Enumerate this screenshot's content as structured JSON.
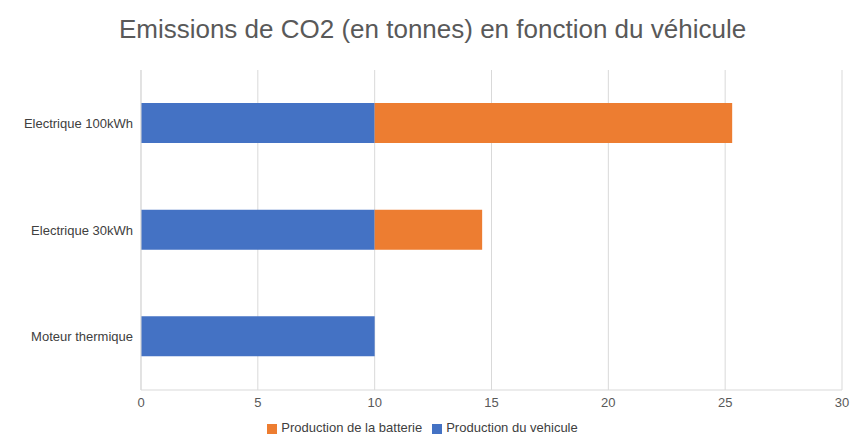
{
  "chart_data": {
    "type": "bar",
    "title": "Emissions de CO2 (en tonnes) en fonction du véhicule",
    "orientation": "horizontal",
    "stacked": true,
    "categories": [
      "Electrique 100kWh",
      "Electrique 30kWh",
      "Moteur thermique"
    ],
    "series": [
      {
        "name": "Production du vehicule",
        "color": "#4472c4",
        "values": [
          10,
          10,
          10
        ]
      },
      {
        "name": "Production de la batterie",
        "color": "#ed7d31",
        "values": [
          15.3,
          4.6,
          0
        ]
      }
    ],
    "xlim": [
      0,
      30
    ],
    "xticks": [
      0,
      5,
      10,
      15,
      20,
      25,
      30
    ],
    "grid": true,
    "legend": "bottom"
  }
}
